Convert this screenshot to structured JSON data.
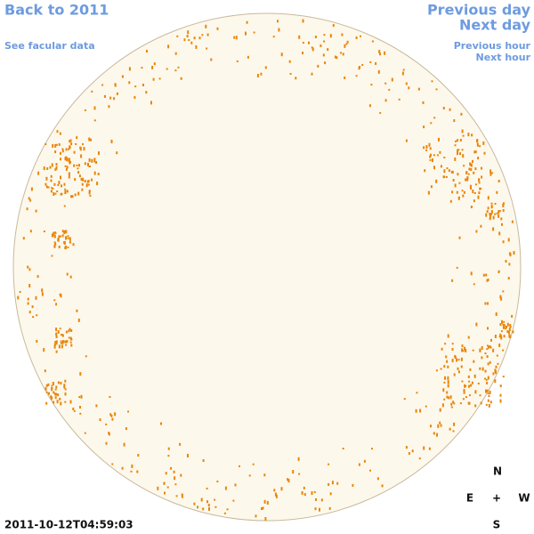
{
  "nav": {
    "back": "Back to 2011",
    "facular": "See facular data",
    "previous_day": "Previous day",
    "next_day": "Next day",
    "previous_hour": "Previous hour",
    "next_hour": "Next hour"
  },
  "timestamp": "2011-10-12T04:59:03",
  "compass": {
    "north": "N",
    "east": "E",
    "center": "+",
    "west": "W",
    "south": "S"
  }
}
